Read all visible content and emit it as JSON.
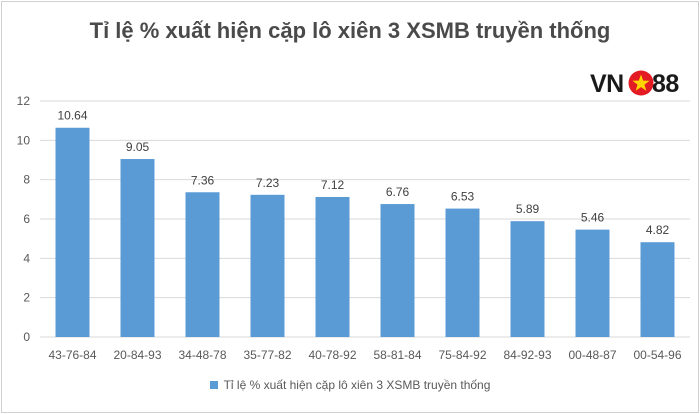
{
  "title": "Tỉ lệ % xuất hiện cặp lô xiên 3 XSMB truyền thống",
  "logo": {
    "left_text": "VN",
    "right_text": "88",
    "star_color": "#ffd400",
    "circle_color": "#e31b23"
  },
  "colors": {
    "bar": "#5b9bd5",
    "grid": "#d9d9d9",
    "axis_text": "#595959",
    "label_text": "#404040"
  },
  "chart_data": {
    "type": "bar",
    "title": "Tỉ lệ % xuất hiện cặp lô xiên 3 XSMB truyền thống",
    "categories": [
      "43-76-84",
      "20-84-93",
      "34-48-78",
      "35-77-82",
      "40-78-92",
      "58-81-84",
      "75-84-92",
      "84-92-93",
      "00-48-87",
      "00-54-96"
    ],
    "series": [
      {
        "name": "Tỉ lệ % xuất hiện cặp lô xiên 3 XSMB truyền thống",
        "values": [
          10.64,
          9.05,
          7.36,
          7.23,
          7.12,
          6.76,
          6.53,
          5.89,
          5.46,
          4.82
        ]
      }
    ],
    "data_labels": [
      "10.64",
      "9.05",
      "7.36",
      "7.23",
      "7.12",
      "6.76",
      "6.53",
      "5.89",
      "5.46",
      "4.82"
    ],
    "y_ticks": [
      "0",
      "2",
      "4",
      "6",
      "8",
      "10",
      "12"
    ],
    "ylim": [
      0,
      12
    ],
    "grid": true,
    "legend": "bottom"
  }
}
